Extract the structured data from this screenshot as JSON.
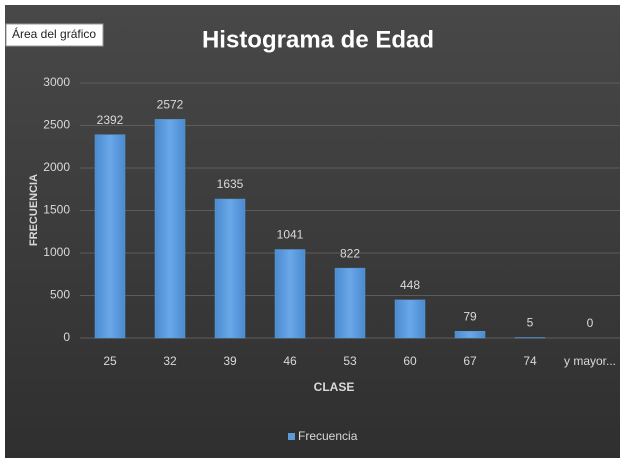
{
  "tooltip": "Área del gráfico",
  "chart_data": {
    "type": "bar",
    "title": "Histograma de Edad",
    "xlabel": "CLASE",
    "ylabel": "FRECUENCIA",
    "categories": [
      "25",
      "32",
      "39",
      "46",
      "53",
      "60",
      "67",
      "74",
      "y mayor..."
    ],
    "series": [
      {
        "name": "Frecuencia",
        "color": "#5b9bd5",
        "values": [
          2392,
          2572,
          1635,
          1041,
          822,
          448,
          79,
          5,
          0
        ]
      }
    ],
    "ylim": [
      0,
      3000
    ],
    "yticks": [
      0,
      500,
      1000,
      1500,
      2000,
      2500,
      3000
    ],
    "grid": true,
    "legend": "bottom"
  }
}
